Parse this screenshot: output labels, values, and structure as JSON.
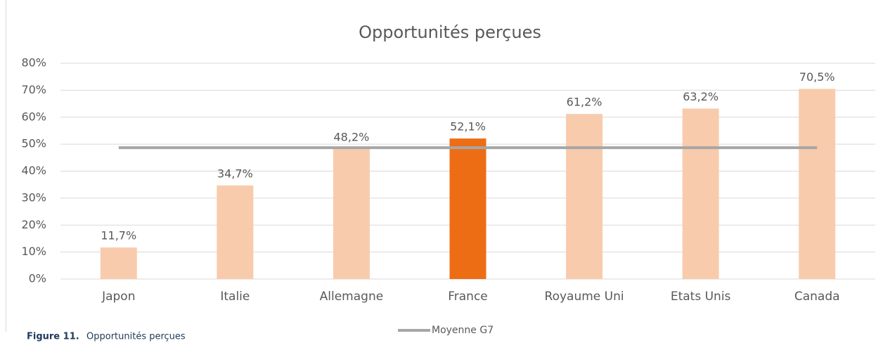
{
  "chart_data": {
    "type": "bar",
    "title": "Opportunités perçues",
    "categories": [
      "Japon",
      "Italie",
      "Allemagne",
      "France",
      "Royaume Uni",
      "Etats Unis",
      "Canada"
    ],
    "values": [
      11.7,
      34.7,
      48.2,
      52.1,
      61.2,
      63.2,
      70.5
    ],
    "value_labels": [
      "11,7%",
      "34,7%",
      "48,2%",
      "52,1%",
      "61,2%",
      "63,2%",
      "70,5%"
    ],
    "colors": [
      "#f8cbad",
      "#f8cbad",
      "#f8cbad",
      "#ed6d15",
      "#f8cbad",
      "#f8cbad",
      "#f8cbad"
    ],
    "lines": [
      {
        "name": "Moyenne G7",
        "color": "#a6a6a6",
        "values": [
          48.7,
          48.7,
          48.7,
          48.7,
          48.7,
          48.7,
          48.7
        ]
      }
    ],
    "ylim": [
      0,
      80
    ],
    "yticks": [
      {
        "value": 0,
        "label": "0%"
      },
      {
        "value": 10,
        "label": "10%"
      },
      {
        "value": 20,
        "label": "20%"
      },
      {
        "value": 30,
        "label": "30%"
      },
      {
        "value": 40,
        "label": "40%"
      },
      {
        "value": 50,
        "label": "50%"
      },
      {
        "value": 60,
        "label": "60%"
      },
      {
        "value": 70,
        "label": "70%"
      },
      {
        "value": 80,
        "label": "80%"
      }
    ],
    "grid": true,
    "legend": "bottom"
  },
  "caption": {
    "label": "Figure 11.",
    "text": "Opportunités perçues"
  }
}
